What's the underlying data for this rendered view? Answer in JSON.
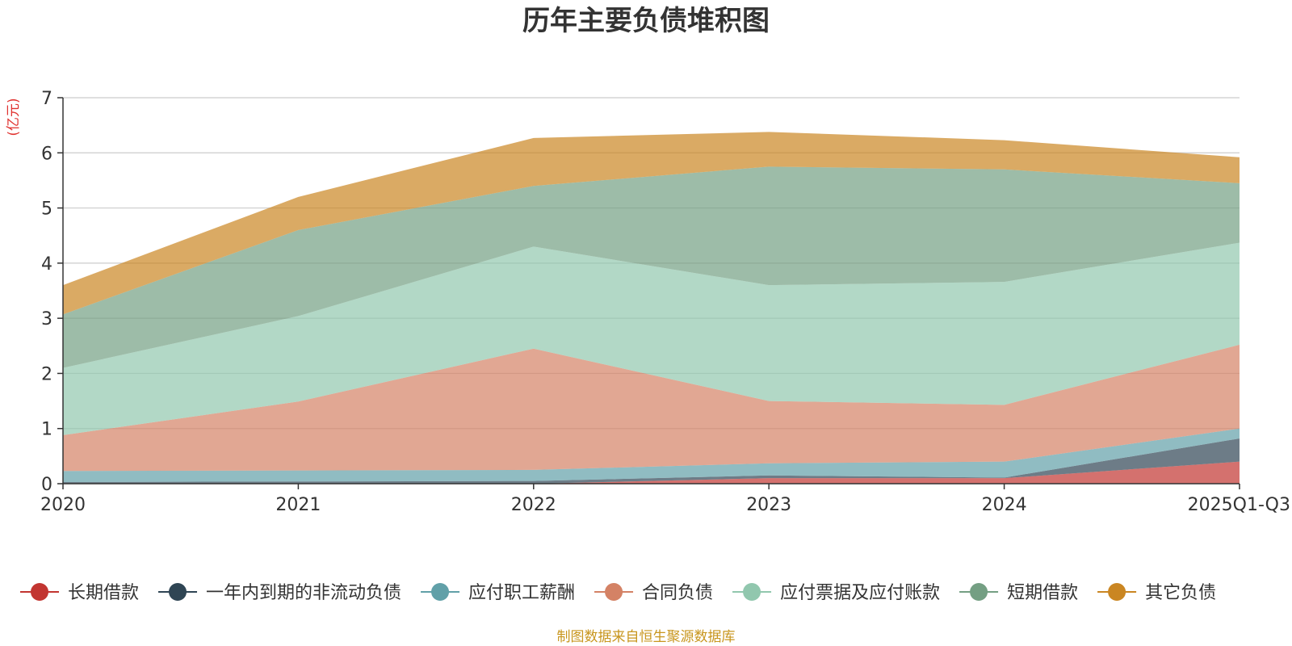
{
  "chart_data": {
    "type": "area",
    "stacked": true,
    "title": "历年主要负债堆积图",
    "ylabel": "(亿元)",
    "xlabel": "",
    "ylim": [
      0,
      7
    ],
    "yticks": [
      0,
      1,
      2,
      3,
      4,
      5,
      6,
      7
    ],
    "categories": [
      "2020",
      "2021",
      "2022",
      "2023",
      "2024",
      "2025Q1-Q3"
    ],
    "grid": true,
    "legend_position": "bottom",
    "series": [
      {
        "name": "长期借款",
        "color": "#c23531",
        "values": [
          0.0,
          0.0,
          0.0,
          0.1,
          0.1,
          0.4
        ]
      },
      {
        "name": "一年内到期的非流动负债",
        "color": "#2f4554",
        "values": [
          0.03,
          0.04,
          0.05,
          0.05,
          0.01,
          0.42
        ]
      },
      {
        "name": "应付职工薪酬",
        "color": "#61a0a8",
        "values": [
          0.2,
          0.2,
          0.2,
          0.22,
          0.29,
          0.18
        ]
      },
      {
        "name": "合同负债",
        "color": "#d48265",
        "values": [
          0.65,
          1.25,
          2.2,
          1.13,
          1.03,
          1.52
        ]
      },
      {
        "name": "应付票据及应付账款",
        "color": "#91c7ae",
        "values": [
          1.22,
          1.55,
          1.85,
          2.1,
          2.23,
          1.85
        ]
      },
      {
        "name": "短期借款",
        "color": "#749f83",
        "values": [
          0.97,
          1.56,
          1.1,
          2.15,
          2.04,
          1.08
        ]
      },
      {
        "name": "其它负债",
        "color": "#ca8622",
        "values": [
          0.53,
          0.6,
          0.87,
          0.63,
          0.53,
          0.47
        ]
      }
    ],
    "source": "制图数据来自恒生聚源数据库"
  }
}
